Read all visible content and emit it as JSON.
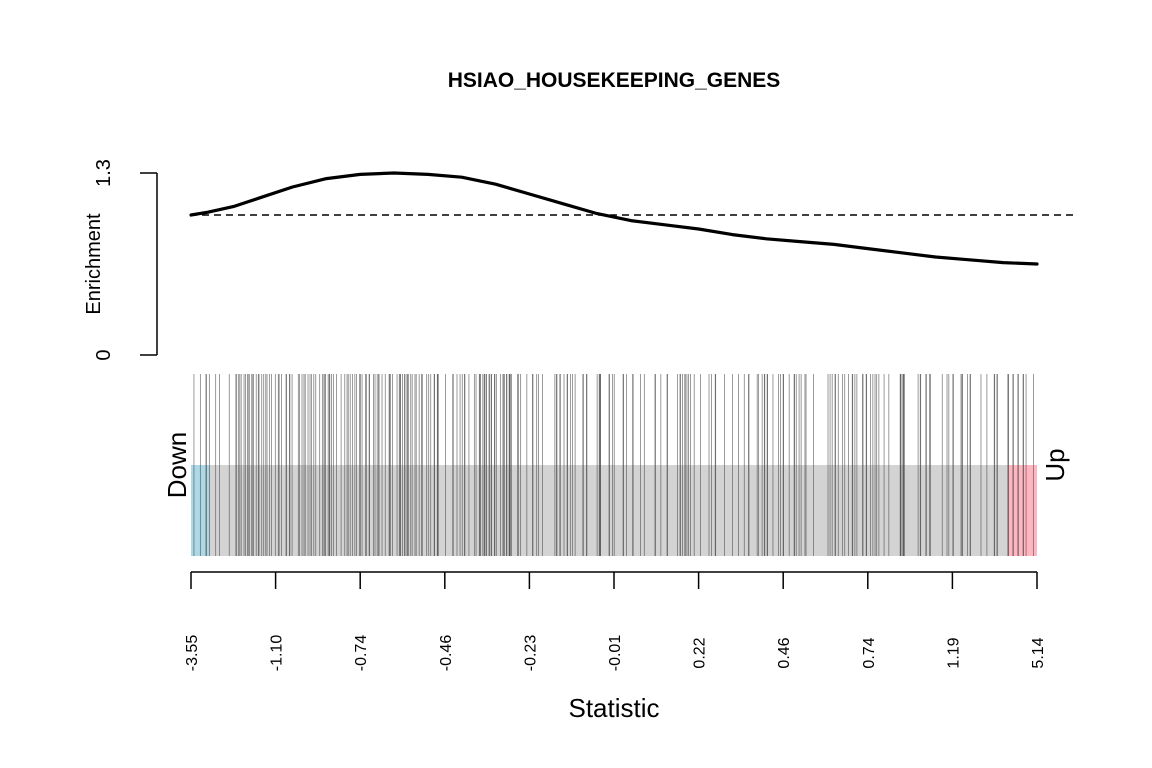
{
  "chart_data": {
    "type": "barcode",
    "title": "HSIAO_HOUSEKEEPING_GENES",
    "xlabel": "Statistic",
    "ylabel": "Enrichment",
    "yticks": [
      "0",
      "1.3"
    ],
    "ylim": [
      0,
      1.3
    ],
    "reference_line": 1.0,
    "down_label": "Down",
    "up_label": "Up",
    "xtick_labels": [
      "-3.55",
      "-1.10",
      "-0.74",
      "-0.46",
      "-0.23",
      "-0.01",
      "0.22",
      "0.46",
      "0.74",
      "1.19",
      "5.14"
    ],
    "worm": {
      "x": [
        0.0,
        0.02,
        0.05,
        0.08,
        0.12,
        0.16,
        0.2,
        0.24,
        0.28,
        0.32,
        0.36,
        0.4,
        0.44,
        0.48,
        0.52,
        0.56,
        0.6,
        0.64,
        0.68,
        0.72,
        0.76,
        0.8,
        0.84,
        0.88,
        0.92,
        0.96,
        1.0
      ],
      "y": [
        1.0,
        1.02,
        1.06,
        1.12,
        1.2,
        1.26,
        1.29,
        1.3,
        1.29,
        1.27,
        1.22,
        1.15,
        1.08,
        1.01,
        0.96,
        0.93,
        0.9,
        0.86,
        0.83,
        0.81,
        0.79,
        0.76,
        0.73,
        0.7,
        0.68,
        0.66,
        0.65
      ]
    },
    "colors": {
      "down_region": "#add8e6",
      "up_region": "#ffb6c1",
      "bar_background": "#d3d3d3",
      "gene_bar": "#404040",
      "worm": "#000000"
    }
  }
}
